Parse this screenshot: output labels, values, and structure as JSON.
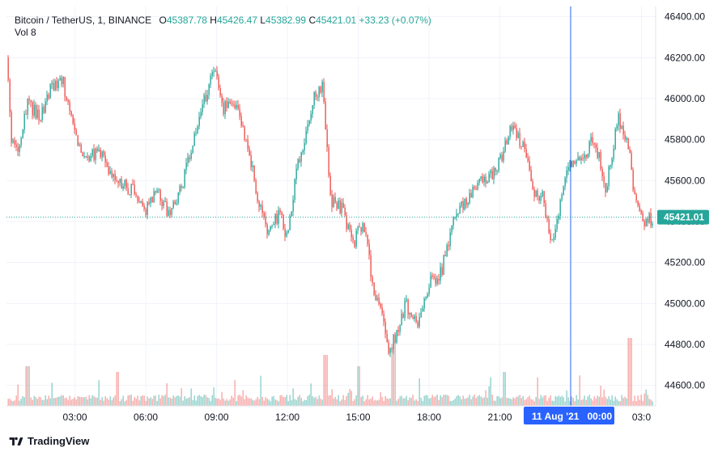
{
  "legend": {
    "symbol": "Bitcoin / TetherUS, 1, BINANCE",
    "o_label": "O",
    "o_value": "45387.78",
    "h_label": "H",
    "h_value": "45426.47",
    "l_label": "L",
    "l_value": "45382.99",
    "c_label": "C",
    "c_value": "45421.01",
    "change": "+33.23 (+0.07%)",
    "vol_label": "Vol",
    "vol_value": "8"
  },
  "brand": "TradingView",
  "colors": {
    "up": "#26a69a",
    "down": "#ef5350",
    "crosshair": "#2962ff",
    "price_line": "#26a69a",
    "grid": "#f0f3fa"
  },
  "chart_data": {
    "type": "candlestick",
    "symbol": "Bitcoin / TetherUS",
    "interval": "1",
    "exchange": "BINANCE",
    "y_ticks": [
      44600,
      44800,
      45000,
      45200,
      45400,
      45600,
      45800,
      46000,
      46200,
      46400
    ],
    "y_tick_labels": [
      "44600.00",
      "44800.00",
      "45000.00",
      "45200.00",
      "45400.00",
      "45600.00",
      "45800.00",
      "46000.00",
      "46200.00",
      "46400.00"
    ],
    "ylim": [
      44500,
      46450
    ],
    "x_tick_labels": [
      "03:00",
      "06:00",
      "09:00",
      "12:00",
      "15:00",
      "18:00",
      "21:00",
      "03:0"
    ],
    "x_ticks_hours": [
      3,
      6,
      9,
      12,
      15,
      18,
      21,
      27
    ],
    "xlim_hours": [
      0.1,
      27.6
    ],
    "crosshair_hours": 24,
    "crosshair_label": "11 Aug '21   00:00",
    "last_price": 45421.01,
    "last_price_label": "45421.01",
    "price_path": [
      [
        0.1,
        46200
      ],
      [
        0.3,
        45800
      ],
      [
        0.6,
        45750
      ],
      [
        1.0,
        45980
      ],
      [
        1.5,
        45900
      ],
      [
        2.0,
        46050
      ],
      [
        2.5,
        46080
      ],
      [
        3.0,
        45820
      ],
      [
        3.5,
        45700
      ],
      [
        4.0,
        45750
      ],
      [
        4.5,
        45650
      ],
      [
        5.0,
        45580
      ],
      [
        5.5,
        45550
      ],
      [
        6.0,
        45460
      ],
      [
        6.5,
        45550
      ],
      [
        7.0,
        45420
      ],
      [
        7.5,
        45560
      ],
      [
        8.0,
        45780
      ],
      [
        8.5,
        46000
      ],
      [
        8.9,
        46150
      ],
      [
        9.3,
        45950
      ],
      [
        9.8,
        45980
      ],
      [
        10.3,
        45780
      ],
      [
        10.8,
        45480
      ],
      [
        11.2,
        45330
      ],
      [
        11.7,
        45460
      ],
      [
        12.0,
        45300
      ],
      [
        12.3,
        45600
      ],
      [
        12.7,
        45800
      ],
      [
        13.1,
        46000
      ],
      [
        13.5,
        46080
      ],
      [
        13.8,
        45500
      ],
      [
        14.3,
        45460
      ],
      [
        14.8,
        45300
      ],
      [
        15.2,
        45400
      ],
      [
        15.6,
        45100
      ],
      [
        16.0,
        44950
      ],
      [
        16.3,
        44750
      ],
      [
        16.6,
        44850
      ],
      [
        17.0,
        45000
      ],
      [
        17.5,
        44900
      ],
      [
        18.0,
        45100
      ],
      [
        18.5,
        45150
      ],
      [
        19.0,
        45400
      ],
      [
        19.5,
        45500
      ],
      [
        20.0,
        45580
      ],
      [
        20.5,
        45600
      ],
      [
        21.0,
        45700
      ],
      [
        21.5,
        45880
      ],
      [
        22.0,
        45760
      ],
      [
        22.4,
        45560
      ],
      [
        22.8,
        45520
      ],
      [
        23.2,
        45300
      ],
      [
        23.6,
        45520
      ],
      [
        24.0,
        45700
      ],
      [
        24.5,
        45720
      ],
      [
        25.0,
        45800
      ],
      [
        25.5,
        45560
      ],
      [
        26.0,
        45900
      ],
      [
        26.4,
        45800
      ],
      [
        26.8,
        45450
      ],
      [
        27.2,
        45400
      ],
      [
        27.5,
        45421
      ]
    ],
    "volume_spikes": [
      [
        1,
        0.35
      ],
      [
        4.8,
        0.3
      ],
      [
        13.6,
        0.45
      ],
      [
        15.0,
        0.35
      ],
      [
        16.5,
        0.55
      ],
      [
        21.2,
        0.3
      ],
      [
        26.5,
        0.6
      ]
    ]
  }
}
